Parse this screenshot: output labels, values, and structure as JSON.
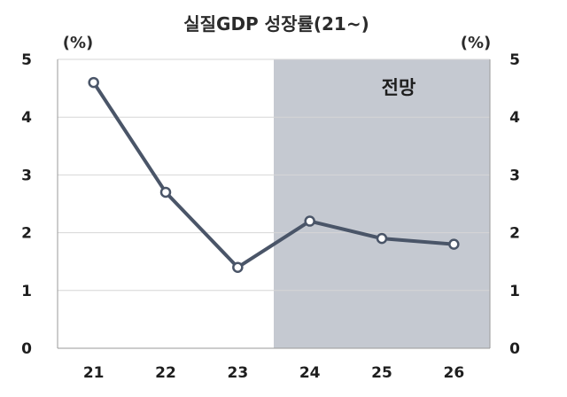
{
  "chart_data": {
    "type": "line",
    "title": "실질GDP 성장률(21~)",
    "y_unit_left": "(%)",
    "y_unit_right": "(%)",
    "x": [
      "21",
      "22",
      "23",
      "24",
      "25",
      "26"
    ],
    "series": [
      {
        "values": [
          4.6,
          2.7,
          1.4,
          2.2,
          1.9,
          1.8
        ]
      }
    ],
    "ylim": [
      0,
      5
    ],
    "yticks": [
      "0",
      "1",
      "2",
      "3",
      "4",
      "5"
    ],
    "forecast_label": "전망",
    "forecast_from": "24",
    "grid": true,
    "colors": {
      "line": "#4a5568",
      "marker_fill": "#ffffff",
      "forecast_bg": "#c5c9d1",
      "grid": "#d6d6d6",
      "axis": "#9a9a9a"
    }
  }
}
